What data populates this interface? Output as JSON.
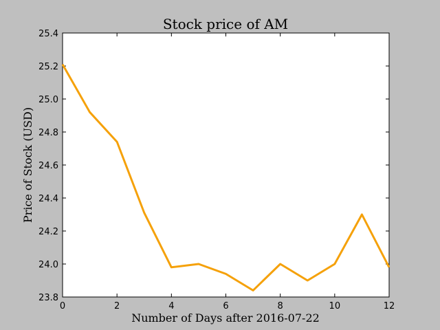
{
  "chart_data": {
    "type": "line",
    "title": "Stock price of AM",
    "xlabel": "Number of Days after 2016-07-22",
    "ylabel": "Price of Stock (USD)",
    "xlim": [
      0,
      12
    ],
    "ylim": [
      23.8,
      25.4
    ],
    "xticks": [
      0,
      2,
      4,
      6,
      8,
      10,
      12
    ],
    "xtick_labels": [
      "0",
      "2",
      "4",
      "6",
      "8",
      "10",
      "12"
    ],
    "yticks": [
      23.8,
      24.0,
      24.2,
      24.4,
      24.6,
      24.8,
      25.0,
      25.2,
      25.4
    ],
    "ytick_labels": [
      "23.8",
      "24.0",
      "24.2",
      "24.4",
      "24.6",
      "24.8",
      "25.0",
      "25.2",
      "25.4"
    ],
    "grid": false,
    "series": [
      {
        "color": "#f5a10a",
        "x": [
          0,
          1,
          2,
          3,
          4,
          5,
          6,
          7,
          8,
          9,
          10,
          11,
          12
        ],
        "y": [
          25.21,
          24.92,
          24.74,
          24.31,
          23.98,
          24.0,
          23.94,
          23.84,
          24.0,
          23.9,
          24.0,
          24.3,
          23.98
        ]
      }
    ]
  }
}
